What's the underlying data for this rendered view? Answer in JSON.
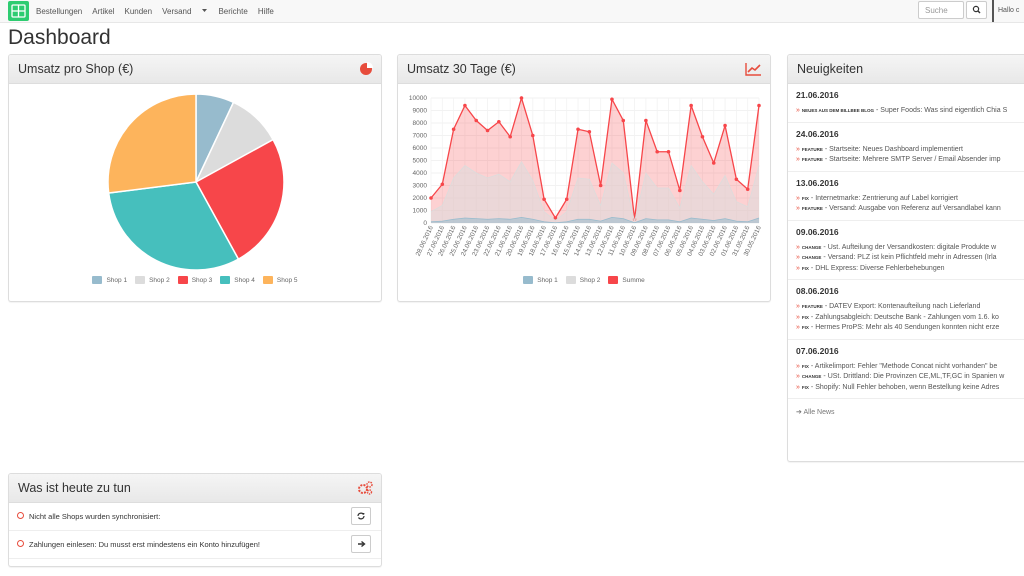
{
  "nav": {
    "items": [
      "Bestellungen",
      "Artikel",
      "Kunden",
      "Versand",
      "Berichte",
      "Hilfe"
    ],
    "search_placeholder": "Suche",
    "user": "Hallo c"
  },
  "page_title": "Dashboard",
  "chart_data": [
    {
      "type": "pie",
      "title": "Umsatz pro Shop (€)",
      "categories": [
        "Shop 1",
        "Shop 2",
        "Shop 3",
        "Shop 4",
        "Shop 5"
      ],
      "values": [
        7,
        10,
        25,
        31,
        27
      ],
      "colors": [
        "#97bbcd",
        "#dcdcdc",
        "#f7464a",
        "#46bfbd",
        "#fdb45c"
      ],
      "legend": "bottom"
    },
    {
      "type": "area",
      "title": "Umsatz 30 Tage (€)",
      "categories": [
        "28.06.2016",
        "27.06.2016",
        "26.06.2016",
        "25.06.2016",
        "24.06.2016",
        "23.06.2016",
        "22.06.2016",
        "21.06.2016",
        "20.06.2016",
        "19.06.2016",
        "18.06.2016",
        "17.06.2016",
        "16.06.2016",
        "15.06.2016",
        "14.06.2016",
        "13.06.2016",
        "12.06.2016",
        "11.06.2016",
        "10.06.2016",
        "09.06.2016",
        "08.06.2016",
        "07.06.2016",
        "06.06.2016",
        "05.06.2016",
        "04.06.2016",
        "03.06.2016",
        "02.06.2016",
        "01.06.2016",
        "31.05.2016",
        "30.05.2016"
      ],
      "series": [
        {
          "name": "Shop 1",
          "color": "#97bbcd",
          "values": [
            100,
            150,
            300,
            400,
            350,
            300,
            350,
            300,
            450,
            300,
            100,
            20,
            100,
            300,
            300,
            150,
            450,
            350,
            20,
            350,
            250,
            250,
            100,
            400,
            300,
            200,
            350,
            150,
            100,
            400
          ]
        },
        {
          "name": "Shop 2",
          "color": "#dcdcdc",
          "values": [
            900,
            1400,
            3600,
            4600,
            4000,
            3600,
            3900,
            3300,
            4900,
            3400,
            900,
            200,
            900,
            3600,
            3500,
            1400,
            4800,
            4000,
            150,
            4000,
            2800,
            2800,
            1200,
            4600,
            3300,
            2300,
            3800,
            1700,
            1300,
            4600
          ]
        },
        {
          "name": "Summe",
          "color": "#f7464a",
          "values": [
            2000,
            3100,
            7500,
            9400,
            8200,
            7400,
            8100,
            6900,
            10000,
            7000,
            1900,
            400,
            1900,
            7500,
            7300,
            3000,
            9900,
            8200,
            300,
            8200,
            5700,
            5700,
            2600,
            9400,
            6900,
            4800,
            7800,
            3500,
            2700,
            9400
          ]
        }
      ],
      "ylim": [
        0,
        10000
      ],
      "yticks": [
        0,
        1000,
        2000,
        3000,
        4000,
        5000,
        6000,
        7000,
        8000,
        9000,
        10000
      ],
      "grid": true,
      "legend": "bottom"
    }
  ],
  "news": {
    "title": "Neuigkeiten",
    "more": "Alle News",
    "groups": [
      {
        "date": "21.06.2016",
        "items": [
          {
            "tag": "NEUES AUS DEM BILLBEE BLOG",
            "text": "- Super Foods: Was sind eigentlich Chia S"
          }
        ]
      },
      {
        "date": "24.06.2016",
        "items": [
          {
            "tag": "FEATURE",
            "text": "- Startseite: Neues Dashboard implementiert"
          },
          {
            "tag": "FEATURE",
            "text": "- Startseite: Mehrere SMTP Server / Email Absender imp"
          }
        ]
      },
      {
        "date": "13.06.2016",
        "items": [
          {
            "tag": "FIX",
            "text": "- Internetmarke: Zentrierung auf Label korrigiert"
          },
          {
            "tag": "FEATURE",
            "text": "- Versand: Ausgabe von Referenz auf Versandlabel kann"
          }
        ]
      },
      {
        "date": "09.06.2016",
        "items": [
          {
            "tag": "CHANGE",
            "text": "- Ust. Aufteilung der Versandkosten: digitale Produkte w"
          },
          {
            "tag": "CHANGE",
            "text": "- Versand: PLZ ist kein Pflichtfeld mehr in Adressen (Irla"
          },
          {
            "tag": "FIX",
            "text": "- DHL Express: Diverse Fehlerbehebungen"
          }
        ]
      },
      {
        "date": "08.06.2016",
        "items": [
          {
            "tag": "FEATURE",
            "text": "- DATEV Export: Kontenaufteilung nach Lieferland"
          },
          {
            "tag": "FIX",
            "text": "- Zahlungsabgleich: Deutsche Bank - Zahlungen vom 1.6. ko"
          },
          {
            "tag": "FIX",
            "text": "- Hermes ProPS: Mehr als 40 Sendungen konnten nicht erze"
          }
        ]
      },
      {
        "date": "07.06.2016",
        "items": [
          {
            "tag": "FIX",
            "text": "- Artikelimport: Fehler \"Methode Concat nicht vorhanden\" be"
          },
          {
            "tag": "CHANGE",
            "text": "- USt. Drittland: Die Provinzen CE,ML,TF,GC in Spanien w"
          },
          {
            "tag": "FIX",
            "text": "- Shopify: Null Fehler behoben, wenn Bestellung keine Adres"
          }
        ]
      }
    ]
  },
  "todo": {
    "title": "Was ist heute zu tun",
    "items": [
      "Nicht alle Shops wurden synchronisiert:",
      "Zahlungen einlesen: Du musst erst mindestens ein Konto hinzufügen!"
    ]
  }
}
